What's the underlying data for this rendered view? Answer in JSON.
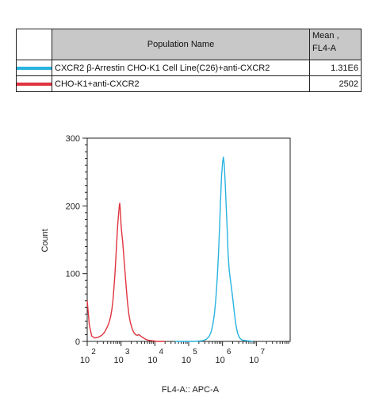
{
  "legend": {
    "header_name": "Population Name",
    "header_mean_line1": "Mean ,",
    "header_mean_line2": "FL4-A",
    "rows": [
      {
        "name": "CXCR2 β-Arrestin CHO-K1 Cell Line(C26)+anti-CXCR2",
        "mean": "1.31E6",
        "color": "#29b3e0"
      },
      {
        "name": "CHO-K1+anti-CXCR2",
        "mean": "2502",
        "color": "#e0343e"
      }
    ]
  },
  "chart_data": {
    "type": "area",
    "xlabel": "FL4-A:: APC-A",
    "ylabel": "Count",
    "x_scale": "log",
    "xlim": [
      100,
      100000000
    ],
    "ylim": [
      0,
      300
    ],
    "yticks": [
      0,
      100,
      200,
      300
    ],
    "xtick_labels": [
      {
        "base": "10",
        "exp": "2",
        "value": 100
      },
      {
        "base": "10",
        "exp": "3",
        "value": 1000
      },
      {
        "base": "10",
        "exp": "4",
        "value": 10000
      },
      {
        "base": "10",
        "exp": "5",
        "value": 100000
      },
      {
        "base": "10",
        "exp": "6",
        "value": 1000000
      },
      {
        "base": "10",
        "exp": "7",
        "value": 10000000
      }
    ],
    "series": [
      {
        "name": "CHO-K1+anti-CXCR2",
        "color": "#e0343e",
        "points": [
          [
            100,
            60
          ],
          [
            115,
            25
          ],
          [
            135,
            8
          ],
          [
            165,
            5
          ],
          [
            210,
            6
          ],
          [
            270,
            9
          ],
          [
            330,
            14
          ],
          [
            390,
            21
          ],
          [
            450,
            29
          ],
          [
            500,
            38
          ],
          [
            540,
            48
          ],
          [
            580,
            62
          ],
          [
            620,
            80
          ],
          [
            660,
            100
          ],
          [
            700,
            122
          ],
          [
            740,
            145
          ],
          [
            780,
            165
          ],
          [
            820,
            180
          ],
          [
            860,
            192
          ],
          [
            890,
            200
          ],
          [
            915,
            204
          ],
          [
            940,
            198
          ],
          [
            970,
            185
          ],
          [
            1000,
            172
          ],
          [
            1050,
            160
          ],
          [
            1120,
            146
          ],
          [
            1200,
            128
          ],
          [
            1300,
            105
          ],
          [
            1420,
            80
          ],
          [
            1550,
            58
          ],
          [
            1700,
            40
          ],
          [
            1900,
            27
          ],
          [
            2150,
            18
          ],
          [
            2400,
            13
          ],
          [
            2700,
            10
          ],
          [
            3000,
            9
          ],
          [
            3400,
            10
          ],
          [
            3800,
            8
          ],
          [
            4300,
            6
          ],
          [
            5000,
            4
          ],
          [
            6000,
            2
          ],
          [
            8000,
            1
          ],
          [
            12000,
            0
          ],
          [
            20000,
            0
          ]
        ]
      },
      {
        "name": "CXCR2 β-Arrestin CHO-K1 Cell Line(C26)+anti-CXCR2",
        "color": "#29b3e0",
        "points": [
          [
            40000,
            0
          ],
          [
            150000,
            0
          ],
          [
            260000,
            1
          ],
          [
            330000,
            3
          ],
          [
            400000,
            7
          ],
          [
            460000,
            14
          ],
          [
            520000,
            25
          ],
          [
            580000,
            42
          ],
          [
            640000,
            65
          ],
          [
            700000,
            95
          ],
          [
            760000,
            130
          ],
          [
            820000,
            170
          ],
          [
            880000,
            212
          ],
          [
            940000,
            245
          ],
          [
            1000000,
            263
          ],
          [
            1060000,
            272
          ],
          [
            1120000,
            262
          ],
          [
            1190000,
            238
          ],
          [
            1270000,
            205
          ],
          [
            1360000,
            170
          ],
          [
            1460000,
            130
          ],
          [
            1580000,
            105
          ],
          [
            1720000,
            90
          ],
          [
            1880000,
            75
          ],
          [
            2060000,
            58
          ],
          [
            2260000,
            40
          ],
          [
            2500000,
            24
          ],
          [
            2800000,
            12
          ],
          [
            3200000,
            5
          ],
          [
            3800000,
            2
          ],
          [
            5000000,
            1
          ],
          [
            8000000,
            0
          ]
        ]
      }
    ]
  }
}
